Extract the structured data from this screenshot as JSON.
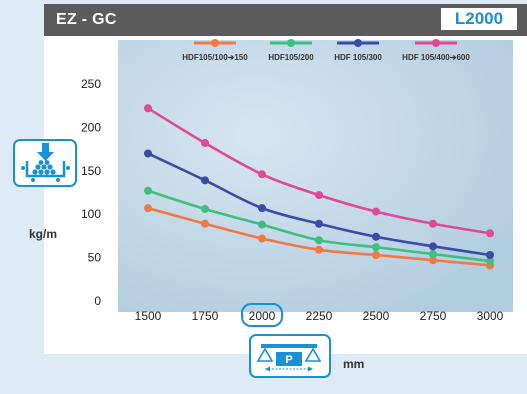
{
  "header": {
    "title": "EZ - GC",
    "badge": "L2000"
  },
  "units": {
    "y": "kg/m",
    "x": "mm"
  },
  "icons": {
    "load": "distributed-load-icon",
    "span": "span-pitch-icon",
    "span_label": "P"
  },
  "colors": {
    "header_bg": "#5b5b5b",
    "accent": "#1a90d6",
    "plot_bg": "#c3d8e8"
  },
  "chart_data": {
    "type": "line",
    "x": [
      1500,
      1750,
      2000,
      2250,
      2500,
      2750,
      3000
    ],
    "xticks": [
      "1500",
      "1750",
      "2000",
      "2250",
      "2500",
      "2750",
      "3000"
    ],
    "highlighted_x": "2000",
    "yticks": [
      "0",
      "50",
      "100",
      "150",
      "200",
      "250"
    ],
    "ylim": [
      0,
      250
    ],
    "legend_position": "top",
    "grid": false,
    "series": [
      {
        "name": "HDF105/100➔150",
        "color": "#ef7a45",
        "values": [
          107,
          89,
          72,
          59,
          53,
          47,
          41
        ]
      },
      {
        "name": "HDF105/200",
        "color": "#3dbf7f",
        "values": [
          127,
          106,
          88,
          70,
          62,
          54,
          46
        ]
      },
      {
        "name": "HDF 105/300",
        "color": "#3b4aa5",
        "values": [
          170,
          139,
          107,
          89,
          74,
          63,
          53
        ]
      },
      {
        "name": "HDF 105/400➔600",
        "color": "#e0489a",
        "values": [
          222,
          182,
          146,
          122,
          103,
          89,
          78
        ]
      }
    ]
  }
}
